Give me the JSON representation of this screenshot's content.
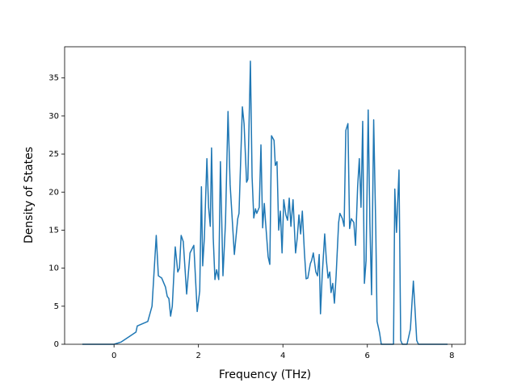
{
  "chart_data": {
    "type": "line",
    "x_label": "Frequency (THz)",
    "y_label": "Density of States",
    "xlim": [
      -1.17,
      8.32
    ],
    "ylim": [
      0,
      39.1
    ],
    "xticks": [
      0,
      2,
      4,
      6,
      8
    ],
    "yticks": [
      0,
      5,
      10,
      15,
      20,
      25,
      30,
      35
    ],
    "series": [
      {
        "color": "#1f77b4",
        "x": [
          -0.75,
          0,
          0.17,
          0.36,
          0.52,
          0.55,
          0.8,
          0.9,
          1.0,
          1.05,
          1.13,
          1.22,
          1.26,
          1.3,
          1.34,
          1.38,
          1.45,
          1.51,
          1.55,
          1.59,
          1.64,
          1.72,
          1.8,
          1.89,
          1.97,
          2.03,
          2.07,
          2.1,
          2.14,
          2.2,
          2.24,
          2.28,
          2.31,
          2.35,
          2.39,
          2.43,
          2.48,
          2.52,
          2.58,
          2.64,
          2.7,
          2.75,
          2.85,
          2.93,
          2.96,
          3.04,
          3.08,
          3.14,
          3.17,
          3.23,
          3.27,
          3.31,
          3.35,
          3.38,
          3.44,
          3.48,
          3.52,
          3.56,
          3.59,
          3.65,
          3.69,
          3.73,
          3.79,
          3.82,
          3.86,
          3.9,
          3.94,
          3.98,
          4.02,
          4.07,
          4.11,
          4.15,
          4.19,
          4.24,
          4.3,
          4.34,
          4.38,
          4.42,
          4.46,
          4.51,
          4.55,
          4.59,
          4.65,
          4.68,
          4.72,
          4.78,
          4.82,
          4.86,
          4.89,
          4.93,
          4.99,
          5.03,
          5.07,
          5.11,
          5.14,
          5.18,
          5.22,
          5.26,
          5.32,
          5.35,
          5.41,
          5.45,
          5.49,
          5.54,
          5.58,
          5.62,
          5.68,
          5.72,
          5.77,
          5.81,
          5.85,
          5.89,
          5.93,
          5.97,
          6.02,
          6.06,
          6.1,
          6.15,
          6.2,
          6.23,
          6.29,
          6.33,
          6.62,
          6.65,
          6.69,
          6.75,
          6.79,
          6.83,
          6.94,
          7.02,
          7.06,
          7.09,
          7.13,
          7.17,
          7.21,
          7.9
        ],
        "values": [
          0,
          0,
          0.3,
          1,
          1.6,
          2.4,
          3.0,
          5,
          14.3,
          9,
          8.7,
          7.5,
          6.3,
          6,
          3.7,
          5,
          12.8,
          9.5,
          10,
          14.3,
          13.5,
          6.6,
          12,
          13,
          4.3,
          7,
          20.7,
          10.3,
          14,
          24.4,
          18,
          15.5,
          25.8,
          14,
          8.5,
          9.8,
          8.5,
          24,
          9,
          16,
          30.6,
          21,
          11.8,
          16.5,
          17.2,
          31.2,
          29,
          21.3,
          21.7,
          37.2,
          22,
          16.6,
          17.8,
          17.2,
          18,
          26.2,
          15.3,
          18.5,
          16,
          11.5,
          10.5,
          27.4,
          26.8,
          23.5,
          24,
          15,
          17.5,
          12,
          19,
          17,
          16.3,
          19.2,
          15.5,
          19,
          12,
          14,
          17,
          14.5,
          17.5,
          12,
          8.6,
          8.7,
          10.6,
          11,
          12,
          9.5,
          9,
          11.8,
          4,
          9,
          14.5,
          11,
          8.7,
          9.5,
          6.8,
          8,
          5.4,
          9,
          16,
          17.2,
          16.5,
          15.5,
          28.1,
          29,
          15.2,
          16.5,
          16,
          13,
          20.7,
          24.4,
          18,
          29.3,
          8,
          11,
          30.8,
          16,
          6.5,
          29.5,
          15,
          3,
          1.5,
          0,
          0,
          20.4,
          14.7,
          22.9,
          0.5,
          0,
          0,
          2,
          5.7,
          8.3,
          4.5,
          0.5,
          0,
          0
        ]
      }
    ]
  }
}
